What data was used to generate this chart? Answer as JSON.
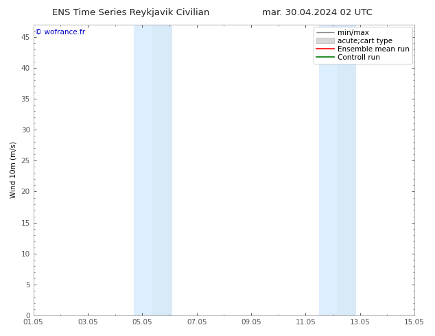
{
  "title_left": "ENS Time Series Reykjavik Civilian",
  "title_right": "mar. 30.04.2024 02 UTC",
  "ylabel": "Wind 10m (m/s)",
  "ylim": [
    0,
    47
  ],
  "yticks": [
    0,
    5,
    10,
    15,
    20,
    25,
    30,
    35,
    40,
    45
  ],
  "xlim_start": 0,
  "xlim_end": 14,
  "xtick_labels": [
    "01.05",
    "03.05",
    "05.05",
    "07.05",
    "09.05",
    "11.05",
    "13.05",
    "15.05"
  ],
  "xtick_positions": [
    0,
    2,
    4,
    6,
    8,
    10,
    12,
    14
  ],
  "shaded_bands": [
    {
      "x_start": 3.7,
      "x_end": 4.35,
      "color": "#ddeeff"
    },
    {
      "x_start": 4.35,
      "x_end": 5.1,
      "color": "#d8eaf8"
    },
    {
      "x_start": 10.5,
      "x_end": 11.15,
      "color": "#ddeeff"
    },
    {
      "x_start": 11.15,
      "x_end": 11.85,
      "color": "#d8eaf8"
    }
  ],
  "band_color": "#dce9f5",
  "copyright_text": "© wofrance.fr",
  "copyright_color": "#0000cc",
  "legend_entries": [
    {
      "label": "min/max",
      "color": "#888888",
      "lw": 1.0
    },
    {
      "label": "acute;cart type",
      "color": "#cccccc",
      "lw": 4
    },
    {
      "label": "Ensemble mean run",
      "color": "#ff0000",
      "lw": 1.2
    },
    {
      "label": "Controll run",
      "color": "#007700",
      "lw": 1.2
    }
  ],
  "bg_color": "#ffffff",
  "spine_color": "#aaaaaa",
  "tick_color": "#555555",
  "font_size": 7.5,
  "title_font_size": 9.5
}
